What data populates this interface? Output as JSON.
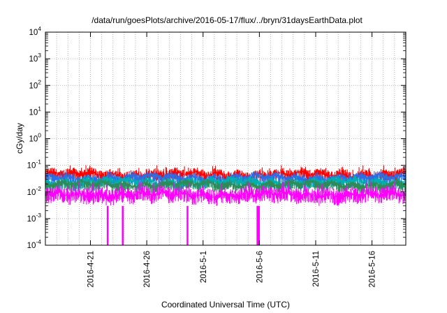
{
  "chart_data": {
    "type": "line",
    "title": "/data/run/goesPlots/archive/2016-05-17/flux/../bryn/31daysEarthData.plot",
    "xlabel": "Coordinated Universal Time (UTC)",
    "ylabel": "cGy/day",
    "yscale": "log",
    "ylim": [
      0.0001,
      10000
    ],
    "xlim": [
      "2016-04-17",
      "2016-05-19"
    ],
    "grid": true,
    "y_ticks": [
      {
        "base": "10",
        "exp": "-4"
      },
      {
        "base": "10",
        "exp": "-3"
      },
      {
        "base": "10",
        "exp": "-2"
      },
      {
        "base": "10",
        "exp": "-1"
      },
      {
        "base": "10",
        "exp": "0"
      },
      {
        "base": "10",
        "exp": "1"
      },
      {
        "base": "10",
        "exp": "2"
      },
      {
        "base": "10",
        "exp": "3"
      },
      {
        "base": "10",
        "exp": "4"
      }
    ],
    "x_ticks": [
      {
        "date": "2016-04-21",
        "label": "2016-4-21"
      },
      {
        "date": "2016-04-26",
        "label": "2016-4-26"
      },
      {
        "date": "2016-05-01",
        "label": "2016-5-1"
      },
      {
        "date": "2016-05-06",
        "label": "2016-5-6"
      },
      {
        "date": "2016-05-11",
        "label": "2016-5-11"
      },
      {
        "date": "2016-05-16",
        "label": "2016-5-16"
      }
    ],
    "series": [
      {
        "color": "#ff0000",
        "min": 0.02,
        "max": 0.1,
        "typical": 0.045
      },
      {
        "color": "#2b6fe8",
        "min": 0.012,
        "max": 0.06,
        "typical": 0.035
      },
      {
        "color": "#00b0b0",
        "min": 0.01,
        "max": 0.04,
        "typical": 0.025
      },
      {
        "color": "#2e8b57",
        "min": 0.008,
        "max": 0.03,
        "typical": 0.02
      },
      {
        "color": "#ff00ff",
        "min": 0.003,
        "max": 0.025,
        "typical": 0.008
      }
    ],
    "dropouts": [
      {
        "start": "2016-04-22 11:00",
        "end": "2016-04-22 14:00",
        "value": 0.0001
      },
      {
        "start": "2016-04-23 19:00",
        "end": "2016-04-23 22:00",
        "value": 0.0001
      },
      {
        "start": "2016-04-29 13:00",
        "end": "2016-04-29 16:00",
        "value": 0.0001
      },
      {
        "start": "2016-05-05 18:00",
        "end": "2016-05-06 01:00",
        "value": 0.0001
      }
    ]
  }
}
